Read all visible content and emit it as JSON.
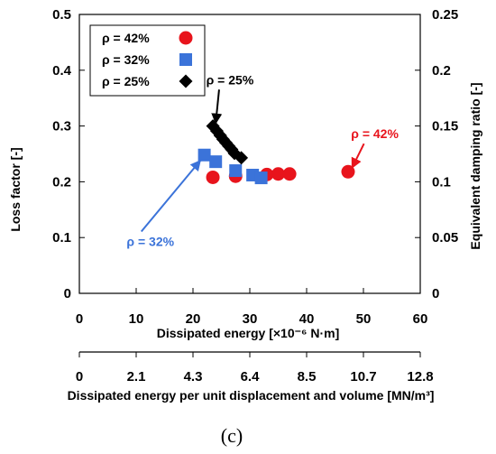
{
  "chart_data": {
    "type": "scatter",
    "xlabel": "Dissipated energy [×10⁻⁶ N·m]",
    "ylabel": "Loss factor [-]",
    "y2label": "Equivalent damping ratio [-]",
    "x2label": "Dissipated energy per unit displacement and volume [MN/m³]",
    "xlim": [
      0,
      60
    ],
    "ylim": [
      0,
      0.5
    ],
    "y2lim": [
      0,
      0.25
    ],
    "x_ticks": [
      "0",
      "10",
      "20",
      "30",
      "40",
      "50",
      "60"
    ],
    "y_ticks": [
      "0",
      "0.1",
      "0.2",
      "0.3",
      "0.4",
      "0.5"
    ],
    "y2_ticks": [
      "0",
      "0.05",
      "0.1",
      "0.15",
      "0.2",
      "0.25"
    ],
    "x2_ticks": [
      "0",
      "2.1",
      "4.3",
      "6.4",
      "8.5",
      "10.7",
      "12.8"
    ],
    "legend_position": "top-left",
    "series": [
      {
        "name": "ρ = 42%",
        "marker": "circle",
        "color": "#e8141c",
        "x": [
          23.5,
          27.5,
          33.0,
          35.0,
          37.0,
          47.3
        ],
        "y": [
          0.208,
          0.21,
          0.213,
          0.214,
          0.214,
          0.218
        ]
      },
      {
        "name": "ρ = 32%",
        "marker": "square",
        "color": "#3b73d9",
        "x": [
          22.0,
          24.0,
          27.5,
          30.5,
          32.0
        ],
        "y": [
          0.248,
          0.236,
          0.22,
          0.212,
          0.207
        ]
      },
      {
        "name": "ρ = 25%",
        "marker": "diamond",
        "color": "#000000",
        "x": [
          23.5,
          24.2,
          24.8,
          25.3,
          25.8,
          26.3,
          26.8,
          27.3,
          28.5
        ],
        "y": [
          0.3,
          0.291,
          0.283,
          0.276,
          0.27,
          0.264,
          0.258,
          0.251,
          0.243
        ]
      }
    ],
    "annotations": [
      {
        "text": "ρ = 25%",
        "color": "#000000",
        "x": 26.5,
        "y": 0.375,
        "arrow_to": [
          24.0,
          0.305
        ]
      },
      {
        "text": "ρ = 42%",
        "color": "#e8141c",
        "x": 52.0,
        "y": 0.278,
        "arrow_to": [
          48.0,
          0.225
        ]
      },
      {
        "text": "ρ = 32%",
        "color": "#3b73d9",
        "x": 12.5,
        "y": 0.085,
        "arrow_to": [
          21.3,
          0.238
        ]
      }
    ],
    "caption": "(c)"
  }
}
